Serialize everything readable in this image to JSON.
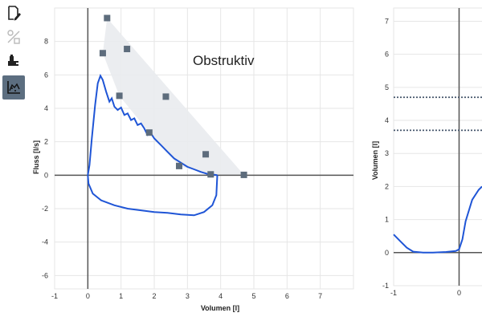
{
  "toolbar": {
    "tools": [
      {
        "name": "report-edit-icon",
        "active": false
      },
      {
        "name": "compare-icon",
        "active": false
      },
      {
        "name": "inhaler-icon",
        "active": false
      },
      {
        "name": "flow-volume-chart-icon",
        "active": true
      }
    ]
  },
  "colors": {
    "curve": "#1f55d6",
    "predicted_marker": "#5d6c7c",
    "predicted_area": "#e9ebee",
    "active_tool": "#5c6e80",
    "grid": "#e6e6e6",
    "axis": "#555555"
  },
  "chart_data": [
    {
      "type": "line",
      "annotation": "Obstruktiv",
      "xlabel": "Volumen [l]",
      "ylabel": "Fluss [l/s]",
      "xlim": [
        -1,
        8
      ],
      "ylim": [
        -6.8,
        10
      ],
      "xticks": [
        -1,
        0,
        1,
        2,
        3,
        4,
        5,
        6,
        7
      ],
      "yticks": [
        -6,
        -4,
        -2,
        0,
        2,
        4,
        6,
        8
      ],
      "grid": true,
      "predicted_markers": [
        {
          "x": 0.58,
          "y": 9.4
        },
        {
          "x": 0.45,
          "y": 7.3
        },
        {
          "x": 1.18,
          "y": 7.55
        },
        {
          "x": 0.95,
          "y": 4.75
        },
        {
          "x": 2.35,
          "y": 4.7
        },
        {
          "x": 1.85,
          "y": 2.55
        },
        {
          "x": 3.55,
          "y": 1.25
        },
        {
          "x": 2.75,
          "y": 0.55
        },
        {
          "x": 3.7,
          "y": 0.05
        },
        {
          "x": 4.7,
          "y": 0.02
        }
      ],
      "expiratory_curve": [
        [
          0,
          0
        ],
        [
          0.05,
          0.6
        ],
        [
          0.12,
          2.2
        ],
        [
          0.22,
          4.2
        ],
        [
          0.3,
          5.5
        ],
        [
          0.38,
          5.95
        ],
        [
          0.45,
          5.7
        ],
        [
          0.55,
          5.0
        ],
        [
          0.65,
          4.4
        ],
        [
          0.72,
          4.6
        ],
        [
          0.8,
          4.1
        ],
        [
          0.9,
          3.9
        ],
        [
          1.0,
          4.05
        ],
        [
          1.1,
          3.6
        ],
        [
          1.2,
          3.7
        ],
        [
          1.3,
          3.3
        ],
        [
          1.4,
          3.4
        ],
        [
          1.5,
          3.0
        ],
        [
          1.6,
          3.1
        ],
        [
          1.7,
          2.8
        ],
        [
          1.8,
          2.4
        ],
        [
          1.9,
          2.5
        ],
        [
          2.0,
          2.2
        ],
        [
          2.2,
          1.8
        ],
        [
          2.4,
          1.4
        ],
        [
          2.6,
          1.0
        ],
        [
          2.8,
          0.75
        ],
        [
          3.0,
          0.5
        ],
        [
          3.2,
          0.35
        ],
        [
          3.4,
          0.2
        ],
        [
          3.6,
          0.08
        ],
        [
          3.8,
          0.03
        ],
        [
          3.9,
          0.0
        ]
      ],
      "inspiratory_curve": [
        [
          3.9,
          0.0
        ],
        [
          3.87,
          -1.2
        ],
        [
          3.75,
          -1.8
        ],
        [
          3.5,
          -2.2
        ],
        [
          3.2,
          -2.4
        ],
        [
          2.8,
          -2.35
        ],
        [
          2.4,
          -2.25
        ],
        [
          2.0,
          -2.2
        ],
        [
          1.6,
          -2.1
        ],
        [
          1.2,
          -2.0
        ],
        [
          0.8,
          -1.8
        ],
        [
          0.4,
          -1.5
        ],
        [
          0.15,
          -1.1
        ],
        [
          0.02,
          -0.5
        ],
        [
          0,
          0
        ]
      ]
    },
    {
      "type": "line",
      "xlabel": "",
      "ylabel": "Volumen [l]",
      "xlim": [
        -1,
        0.35
      ],
      "ylim": [
        -1,
        7.4
      ],
      "xticks": [
        -1,
        0
      ],
      "yticks": [
        -1,
        0,
        1,
        2,
        3,
        4,
        5,
        6,
        7
      ],
      "grid": true,
      "reference_lines": [
        4.7,
        3.7
      ],
      "volume_curve": [
        [
          -1,
          0.55
        ],
        [
          -0.9,
          0.35
        ],
        [
          -0.8,
          0.15
        ],
        [
          -0.7,
          0.03
        ],
        [
          -0.55,
          0.0
        ],
        [
          -0.4,
          0.0
        ],
        [
          -0.2,
          0.02
        ],
        [
          -0.05,
          0.05
        ],
        [
          0,
          0.1
        ],
        [
          0.05,
          0.4
        ],
        [
          0.1,
          0.95
        ],
        [
          0.2,
          1.6
        ],
        [
          0.3,
          1.9
        ],
        [
          0.35,
          2.0
        ]
      ]
    }
  ]
}
